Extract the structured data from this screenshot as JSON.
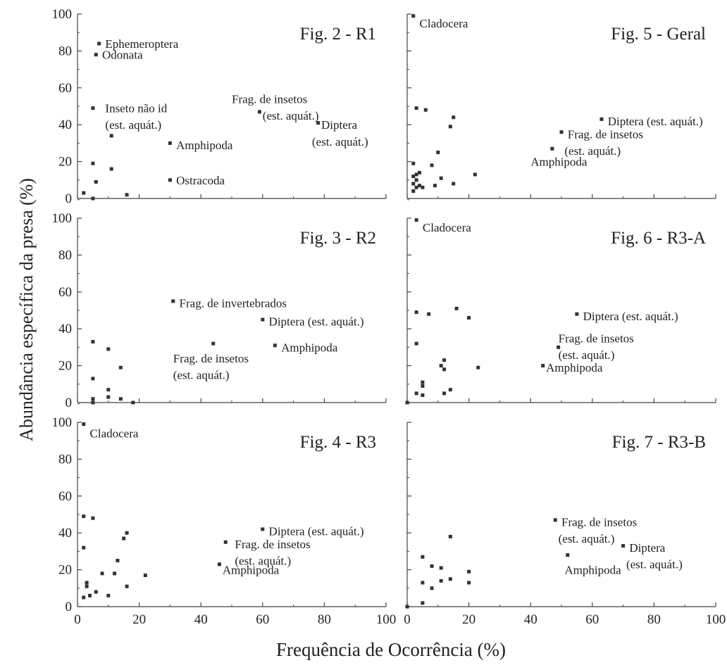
{
  "figure": {
    "shared_xlabel": "Frequência de Ocorrência (%)",
    "shared_ylabel": "Abundância específica da presa (%)",
    "colors": {
      "axis": "#444444",
      "point": "#333333",
      "text": "#222222"
    }
  },
  "chart_data": [
    {
      "type": "scatter",
      "title": "Fig. 2 - R1",
      "xlim": [
        0,
        100
      ],
      "ylim": [
        0,
        100
      ],
      "xticks": [
        "0",
        "20",
        "40",
        "60",
        "80",
        "100"
      ],
      "yticks": [
        "0",
        "20",
        "40",
        "60",
        "80",
        "100"
      ],
      "show_xticks": false,
      "show_yticks": true,
      "grid": false,
      "points": [
        [
          2,
          3
        ],
        [
          5,
          0
        ],
        [
          6,
          9
        ],
        [
          5,
          19
        ],
        [
          5,
          49
        ],
        [
          7,
          84
        ],
        [
          6,
          78
        ],
        [
          11,
          34
        ],
        [
          11,
          16
        ],
        [
          16,
          2
        ],
        [
          30,
          30
        ],
        [
          30,
          10
        ],
        [
          59,
          47
        ],
        [
          78,
          41
        ]
      ],
      "annotations": [
        {
          "text": "Ephemeroptera",
          "x": 9,
          "y": 84
        },
        {
          "text": "Odonata",
          "x": 8,
          "y": 78
        },
        {
          "text": "Inseto não id",
          "x": 9,
          "y": 49
        },
        {
          "text": "(est. aquát.)",
          "x": 9,
          "y": 40
        },
        {
          "text": "Amphipoda",
          "x": 32,
          "y": 29
        },
        {
          "text": "Ostracoda",
          "x": 32,
          "y": 10
        },
        {
          "text": "Frag. de insetos",
          "x": 50,
          "y": 54
        },
        {
          "text": "(est. aquát.)",
          "x": 60,
          "y": 45
        },
        {
          "text": "Diptera",
          "x": 79,
          "y": 40
        },
        {
          "text": "(est. aquát.)",
          "x": 76,
          "y": 31
        }
      ]
    },
    {
      "type": "scatter",
      "title": "Fig. 5 - Geral",
      "xlim": [
        0,
        100
      ],
      "ylim": [
        0,
        100
      ],
      "xticks": [
        "0",
        "20",
        "40",
        "60",
        "80",
        "100"
      ],
      "yticks": [
        "0",
        "20",
        "40",
        "60",
        "80",
        "100"
      ],
      "show_xticks": false,
      "show_yticks": false,
      "grid": false,
      "points": [
        [
          2,
          99
        ],
        [
          3,
          49
        ],
        [
          6,
          48
        ],
        [
          15,
          44
        ],
        [
          14,
          39
        ],
        [
          2,
          19
        ],
        [
          8,
          18
        ],
        [
          10,
          25
        ],
        [
          11,
          11
        ],
        [
          3,
          13
        ],
        [
          4,
          14
        ],
        [
          2,
          12
        ],
        [
          2,
          8
        ],
        [
          3,
          6
        ],
        [
          3,
          10
        ],
        [
          4,
          7
        ],
        [
          5,
          6
        ],
        [
          2,
          4
        ],
        [
          9,
          7
        ],
        [
          15,
          8
        ],
        [
          22,
          13
        ],
        [
          47,
          27
        ],
        [
          50,
          36
        ],
        [
          63,
          43
        ]
      ],
      "annotations": [
        {
          "text": "Cladocera",
          "x": 4,
          "y": 95
        },
        {
          "text": "Diptera (est. aquát.)",
          "x": 65,
          "y": 42
        },
        {
          "text": "Frag. de insetos",
          "x": 52,
          "y": 35
        },
        {
          "text": "(est. aquát.)",
          "x": 51,
          "y": 26
        },
        {
          "text": "Amphipoda",
          "x": 40,
          "y": 20
        }
      ]
    },
    {
      "type": "scatter",
      "title": "Fig. 3 - R2",
      "xlim": [
        0,
        100
      ],
      "ylim": [
        0,
        100
      ],
      "xticks": [
        "0",
        "20",
        "40",
        "60",
        "80",
        "100"
      ],
      "yticks": [
        "0",
        "20",
        "40",
        "60",
        "80",
        "100"
      ],
      "show_xticks": false,
      "show_yticks": true,
      "grid": false,
      "points": [
        [
          5,
          33
        ],
        [
          10,
          29
        ],
        [
          14,
          19
        ],
        [
          5,
          13
        ],
        [
          10,
          7
        ],
        [
          10,
          3
        ],
        [
          14,
          2
        ],
        [
          5,
          2
        ],
        [
          5,
          0
        ],
        [
          18,
          0
        ],
        [
          31,
          55
        ],
        [
          44,
          32
        ],
        [
          60,
          45
        ],
        [
          64,
          31
        ]
      ],
      "annotations": [
        {
          "text": "Frag. de invertebrados",
          "x": 33,
          "y": 54
        },
        {
          "text": "Diptera (est. aquát.)",
          "x": 62,
          "y": 44
        },
        {
          "text": "Amphipoda",
          "x": 66,
          "y": 30
        },
        {
          "text": "Frag. de insetos",
          "x": 31,
          "y": 24
        },
        {
          "text": "(est. aquát.)",
          "x": 31,
          "y": 15
        }
      ]
    },
    {
      "type": "scatter",
      "title": "Fig. 6 - R3-A",
      "xlim": [
        0,
        100
      ],
      "ylim": [
        0,
        100
      ],
      "xticks": [
        "0",
        "20",
        "40",
        "60",
        "80",
        "100"
      ],
      "yticks": [
        "0",
        "20",
        "40",
        "60",
        "80",
        "100"
      ],
      "show_xticks": false,
      "show_yticks": false,
      "grid": false,
      "points": [
        [
          3,
          99
        ],
        [
          3,
          49
        ],
        [
          7,
          48
        ],
        [
          16,
          51
        ],
        [
          20,
          46
        ],
        [
          3,
          32
        ],
        [
          11,
          20
        ],
        [
          12,
          23
        ],
        [
          12,
          18
        ],
        [
          23,
          19
        ],
        [
          3,
          5
        ],
        [
          5,
          9
        ],
        [
          5,
          11
        ],
        [
          5,
          4
        ],
        [
          12,
          5
        ],
        [
          14,
          7
        ],
        [
          0,
          0
        ],
        [
          44,
          20
        ],
        [
          49,
          30
        ],
        [
          55,
          48
        ]
      ],
      "annotations": [
        {
          "text": "Cladocera",
          "x": 5,
          "y": 95
        },
        {
          "text": "Diptera (est. aquát.)",
          "x": 57,
          "y": 47
        },
        {
          "text": "Frag. de insetos",
          "x": 49,
          "y": 35
        },
        {
          "text": "(est. aquát.)",
          "x": 49,
          "y": 26
        },
        {
          "text": "Amphipoda",
          "x": 45,
          "y": 19
        }
      ]
    },
    {
      "type": "scatter",
      "title": "Fig. 4 - R3",
      "xlim": [
        0,
        100
      ],
      "ylim": [
        0,
        100
      ],
      "xticks": [
        "0",
        "20",
        "40",
        "60",
        "80",
        "100"
      ],
      "yticks": [
        "0",
        "20",
        "40",
        "60",
        "80",
        "100"
      ],
      "show_xticks": true,
      "show_yticks": true,
      "grid": false,
      "points": [
        [
          2,
          99
        ],
        [
          2,
          49
        ],
        [
          5,
          48
        ],
        [
          2,
          32
        ],
        [
          16,
          40
        ],
        [
          15,
          37
        ],
        [
          13,
          25
        ],
        [
          12,
          18
        ],
        [
          8,
          18
        ],
        [
          22,
          17
        ],
        [
          3,
          13
        ],
        [
          3,
          11
        ],
        [
          4,
          6
        ],
        [
          2,
          5
        ],
        [
          10,
          6
        ],
        [
          16,
          11
        ],
        [
          6,
          8
        ],
        [
          46,
          23
        ],
        [
          48,
          35
        ],
        [
          60,
          42
        ]
      ],
      "annotations": [
        {
          "text": "Cladocera",
          "x": 4,
          "y": 94
        },
        {
          "text": "Diptera (est. aquát.)",
          "x": 62,
          "y": 41
        },
        {
          "text": "Frag. de insetos",
          "x": 51,
          "y": 34
        },
        {
          "text": "(est. aquát.)",
          "x": 51,
          "y": 25
        },
        {
          "text": "Amphipoda",
          "x": 47,
          "y": 20
        }
      ]
    },
    {
      "type": "scatter",
      "title": "Fig. 7 - R3-B",
      "xlim": [
        0,
        100
      ],
      "ylim": [
        0,
        100
      ],
      "xticks": [
        "0",
        "20",
        "40",
        "60",
        "80",
        "100"
      ],
      "yticks": [
        "0",
        "20",
        "40",
        "60",
        "80",
        "100"
      ],
      "show_xticks": true,
      "show_yticks": false,
      "grid": false,
      "points": [
        [
          0,
          0
        ],
        [
          5,
          2
        ],
        [
          5,
          27
        ],
        [
          5,
          13
        ],
        [
          8,
          22
        ],
        [
          8,
          10
        ],
        [
          11,
          21
        ],
        [
          11,
          14
        ],
        [
          14,
          38
        ],
        [
          14,
          15
        ],
        [
          20,
          19
        ],
        [
          20,
          13
        ],
        [
          48,
          47
        ],
        [
          52,
          28
        ],
        [
          70,
          33
        ]
      ],
      "annotations": [
        {
          "text": "Frag. de insetos",
          "x": 50,
          "y": 46
        },
        {
          "text": "(est. aquát.)",
          "x": 49,
          "y": 37
        },
        {
          "text": "Diptera",
          "x": 72,
          "y": 32
        },
        {
          "text": "(est. aquát.)",
          "x": 71,
          "y": 23
        },
        {
          "text": "Amphipoda",
          "x": 51,
          "y": 20
        }
      ]
    }
  ]
}
